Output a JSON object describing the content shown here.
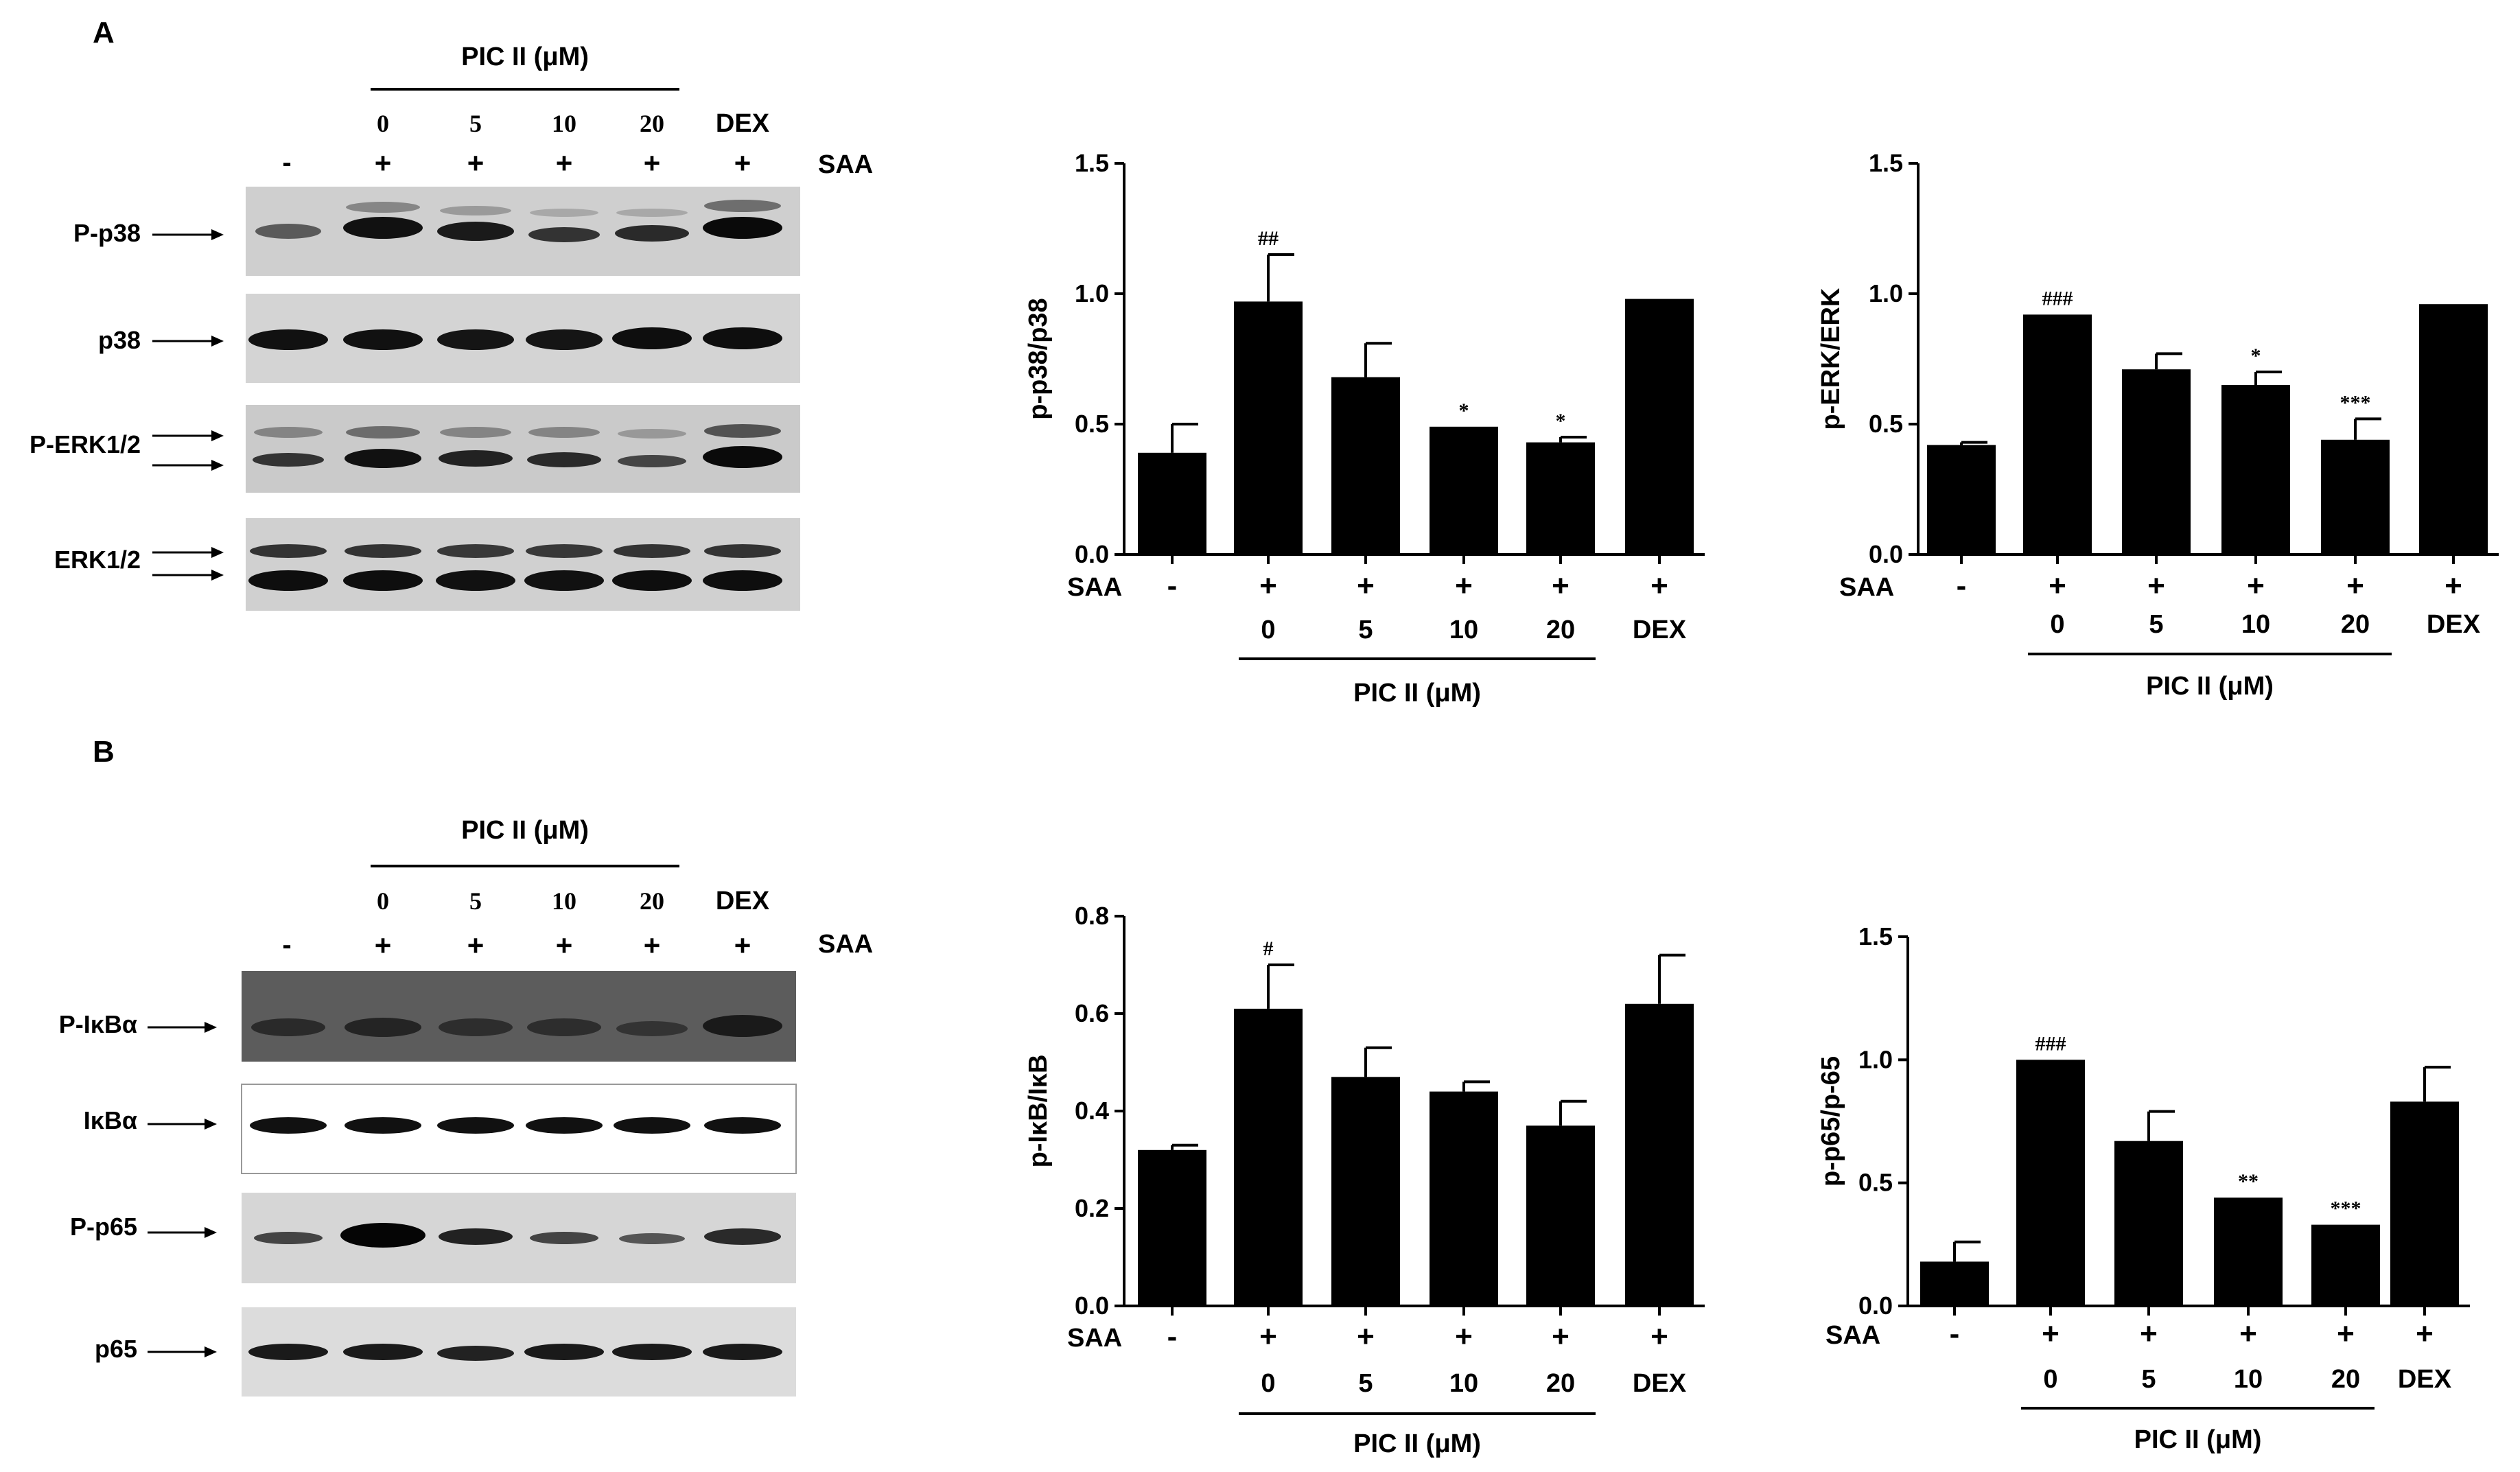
{
  "panels": [
    {
      "letter": "A",
      "header": {
        "treatment": "PIC II (μM)",
        "neg": "-",
        "saa": "SAA",
        "plus": "+",
        "doses": [
          "0",
          "5",
          "10",
          "20"
        ],
        "dex": "DEX"
      },
      "blots": [
        {
          "label": "P-p38",
          "arrows": 1
        },
        {
          "label": "p38",
          "arrows": 1
        },
        {
          "label": "P-ERK1/2",
          "arrows": 2
        },
        {
          "label": "ERK1/2",
          "arrows": 2
        }
      ]
    },
    {
      "letter": "B",
      "header": {
        "treatment": "PIC II (μM)",
        "neg": "-",
        "saa": "SAA",
        "plus": "+",
        "doses": [
          "0",
          "5",
          "10",
          "20"
        ],
        "dex": "DEX"
      },
      "blots": [
        {
          "label": "P-IκBα",
          "arrows": 1
        },
        {
          "label": "IκBα",
          "arrows": 1
        },
        {
          "label": "P-p65",
          "arrows": 1
        },
        {
          "label": "p65",
          "arrows": 1
        }
      ]
    }
  ],
  "chart_data": [
    {
      "type": "bar",
      "ylabel": "p-p38/p38",
      "ylim": [
        0,
        1.5
      ],
      "yticks": [
        "0.0",
        "0.5",
        "1.0",
        "1.5"
      ],
      "values": [
        0.39,
        0.97,
        0.68,
        0.49,
        0.43,
        0.98
      ],
      "errors": [
        0.11,
        0.18,
        0.13,
        0.0,
        0.02,
        0.0
      ],
      "annotations": [
        "",
        "##",
        "",
        "*",
        "*",
        ""
      ],
      "saa_row": [
        "-",
        "+",
        "+",
        "+",
        "+",
        "+"
      ],
      "dose_row": [
        "",
        "0",
        "5",
        "10",
        "20",
        "DEX"
      ],
      "saa_label": "SAA",
      "treatment_label": "PIC II (μM)"
    },
    {
      "type": "bar",
      "ylabel": "p-ERK/ERK",
      "ylim": [
        0,
        1.5
      ],
      "yticks": [
        "0.0",
        "0.5",
        "1.0",
        "1.5"
      ],
      "values": [
        0.42,
        0.92,
        0.71,
        0.65,
        0.44,
        0.96
      ],
      "errors": [
        0.01,
        0.0,
        0.06,
        0.05,
        0.08,
        0.0
      ],
      "annotations": [
        "",
        "###",
        "",
        "*",
        "***",
        ""
      ],
      "saa_row": [
        "-",
        "+",
        "+",
        "+",
        "+",
        "+"
      ],
      "dose_row": [
        "",
        "0",
        "5",
        "10",
        "20",
        "DEX"
      ],
      "saa_label": "SAA",
      "treatment_label": "PIC II (μM)"
    },
    {
      "type": "bar",
      "ylabel": "p-IκB/IκB",
      "ylim": [
        0,
        0.8
      ],
      "yticks": [
        "0.0",
        "0.2",
        "0.4",
        "0.6",
        "0.8"
      ],
      "values": [
        0.32,
        0.61,
        0.47,
        0.44,
        0.37,
        0.62
      ],
      "errors": [
        0.01,
        0.09,
        0.06,
        0.02,
        0.05,
        0.1
      ],
      "annotations": [
        "",
        "#",
        "",
        "",
        "",
        ""
      ],
      "saa_row": [
        "-",
        "+",
        "+",
        "+",
        "+",
        "+"
      ],
      "dose_row": [
        "",
        "0",
        "5",
        "10",
        "20",
        "DEX"
      ],
      "saa_label": "SAA",
      "treatment_label": "PIC II (μM)"
    },
    {
      "type": "bar",
      "ylabel": "p-p65/p-65",
      "ylim": [
        0,
        1.5
      ],
      "yticks": [
        "0.0",
        "0.5",
        "1.0",
        "1.5"
      ],
      "values": [
        0.18,
        1.0,
        0.67,
        0.44,
        0.33,
        0.83
      ],
      "errors": [
        0.08,
        0.0,
        0.12,
        0.0,
        0.0,
        0.14
      ],
      "annotations": [
        "",
        "###",
        "",
        "**",
        "***",
        ""
      ],
      "saa_row": [
        "-",
        "+",
        "+",
        "+",
        "+",
        "+"
      ],
      "dose_row": [
        "",
        "0",
        "5",
        "10",
        "20",
        "DEX"
      ],
      "saa_label": "SAA",
      "treatment_label": "PIC II (μM)"
    }
  ]
}
